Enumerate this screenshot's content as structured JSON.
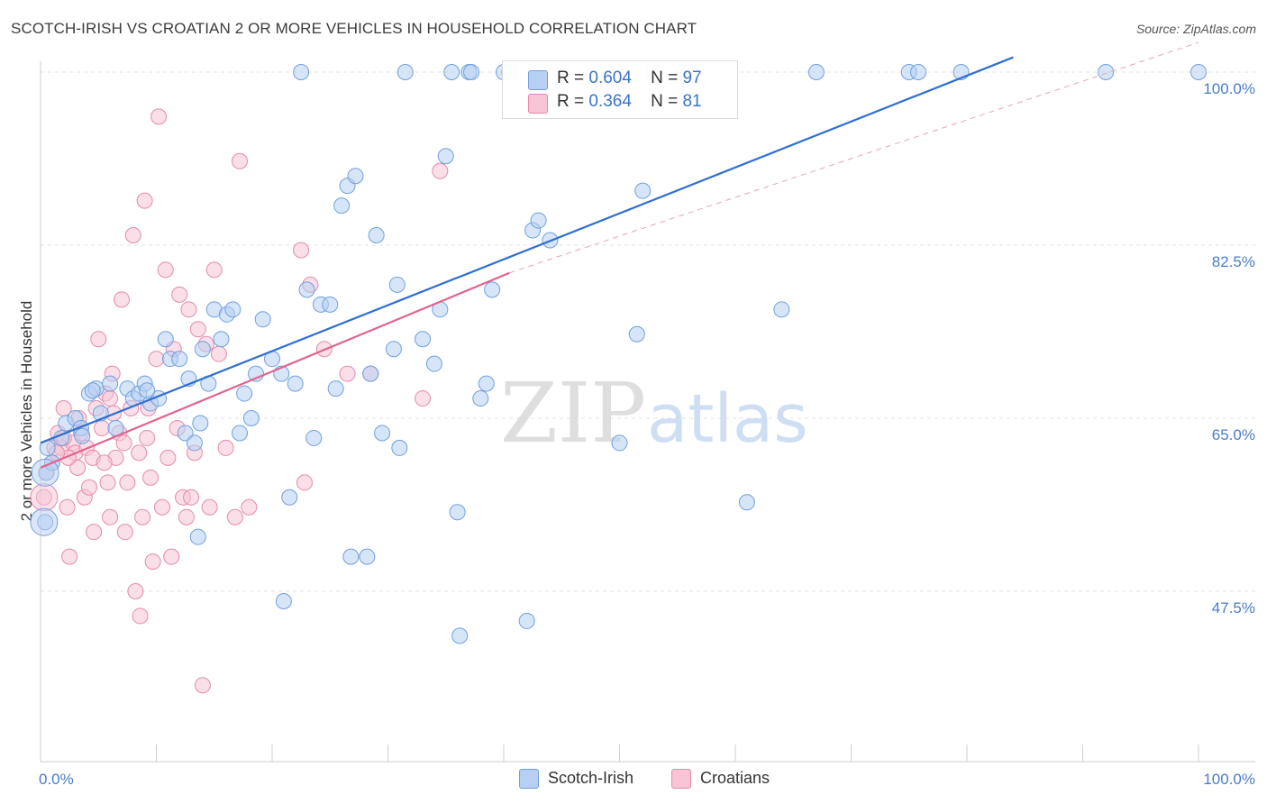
{
  "chart_data": {
    "type": "scatter",
    "title": "SCOTCH-IRISH VS CROATIAN 2 OR MORE VEHICLES IN HOUSEHOLD CORRELATION CHART",
    "source": "Source: ZipAtlas.com",
    "xlabel": "",
    "ylabel": "2 or more Vehicles in Household",
    "xlim": [
      0,
      100
    ],
    "ylim": [
      31,
      103
    ],
    "x_tick_labels": [
      "0.0%",
      "100.0%"
    ],
    "y_ticks": [
      47.5,
      65.0,
      82.5,
      100.0
    ],
    "y_tick_labels": [
      "47.5%",
      "65.0%",
      "82.5%",
      "100.0%"
    ],
    "grid": true,
    "watermark": {
      "part1": "ZIP",
      "part2": "atlas"
    },
    "legend": {
      "placement": "top-center",
      "rows": [
        {
          "r_label": "R =",
          "r_value": "0.604",
          "n_label": "N =",
          "n_value": "97"
        },
        {
          "r_label": "R =",
          "r_value": "0.364",
          "n_label": "N =",
          "n_value": "81"
        }
      ]
    },
    "series": [
      {
        "name": "Scotch-Irish",
        "color": "#6fa0e0",
        "fill": "#b7cff2",
        "line_color": "#2f6fd0",
        "trend": {
          "x": [
            0,
            84
          ],
          "y": [
            62.5,
            101.5
          ]
        },
        "points": [
          [
            0.4,
            54.5
          ],
          [
            0.5,
            59.5
          ],
          [
            0.6,
            62.0
          ],
          [
            1.0,
            60.5
          ],
          [
            1.8,
            63.0
          ],
          [
            2.2,
            64.5
          ],
          [
            3.0,
            65.0
          ],
          [
            3.5,
            64.0
          ],
          [
            4.2,
            67.5
          ],
          [
            4.8,
            68.0
          ],
          [
            5.2,
            65.5
          ],
          [
            6.0,
            68.5
          ],
          [
            6.5,
            64.0
          ],
          [
            7.5,
            68.0
          ],
          [
            8.0,
            67.0
          ],
          [
            8.5,
            67.5
          ],
          [
            9.0,
            68.5
          ],
          [
            9.5,
            66.5
          ],
          [
            10.2,
            67.0
          ],
          [
            10.8,
            73.0
          ],
          [
            11.2,
            71.0
          ],
          [
            12.0,
            71.0
          ],
          [
            12.5,
            63.5
          ],
          [
            12.8,
            69.0
          ],
          [
            13.3,
            62.5
          ],
          [
            14.0,
            72.0
          ],
          [
            14.5,
            68.5
          ],
          [
            15.0,
            76.0
          ],
          [
            15.6,
            73.0
          ],
          [
            16.1,
            75.5
          ],
          [
            16.6,
            76.0
          ],
          [
            17.2,
            63.5
          ],
          [
            17.6,
            67.5
          ],
          [
            18.2,
            65.0
          ],
          [
            18.6,
            69.5
          ],
          [
            19.2,
            75.0
          ],
          [
            20.0,
            71.0
          ],
          [
            20.8,
            69.5
          ],
          [
            21.5,
            57.0
          ],
          [
            22.0,
            68.5
          ],
          [
            22.5,
            100.0
          ],
          [
            23.0,
            78.0
          ],
          [
            23.6,
            63.0
          ],
          [
            24.2,
            76.5
          ],
          [
            25.0,
            76.5
          ],
          [
            25.5,
            68.0
          ],
          [
            26.0,
            86.5
          ],
          [
            26.5,
            88.5
          ],
          [
            27.2,
            89.5
          ],
          [
            28.2,
            51.0
          ],
          [
            28.5,
            69.5
          ],
          [
            29.0,
            83.5
          ],
          [
            29.5,
            63.5
          ],
          [
            30.5,
            72.0
          ],
          [
            30.8,
            78.5
          ],
          [
            31.0,
            62.0
          ],
          [
            31.5,
            100.0
          ],
          [
            33.0,
            73.0
          ],
          [
            34.0,
            70.5
          ],
          [
            34.5,
            76.0
          ],
          [
            35.0,
            91.5
          ],
          [
            35.5,
            100.0
          ],
          [
            36.0,
            55.5
          ],
          [
            36.2,
            43.0
          ],
          [
            37.0,
            100.0
          ],
          [
            37.2,
            100.0
          ],
          [
            38.0,
            67.0
          ],
          [
            38.5,
            68.5
          ],
          [
            39.0,
            78.0
          ],
          [
            40.0,
            100.0
          ],
          [
            40.5,
            100.0
          ],
          [
            42.0,
            44.5
          ],
          [
            42.5,
            84.0
          ],
          [
            43.0,
            85.0
          ],
          [
            44.0,
            83.0
          ],
          [
            45.0,
            100.0
          ],
          [
            50.0,
            62.5
          ],
          [
            51.5,
            73.5
          ],
          [
            52.0,
            88.0
          ],
          [
            53.0,
            100.0
          ],
          [
            55.5,
            100.0
          ],
          [
            56.0,
            100.0
          ],
          [
            61.0,
            56.5
          ],
          [
            64.0,
            76.0
          ],
          [
            67.0,
            100.0
          ],
          [
            75.0,
            100.0
          ],
          [
            75.8,
            100.0
          ],
          [
            79.5,
            100.0
          ],
          [
            92.0,
            100.0
          ],
          [
            100.0,
            100.0
          ],
          [
            9.2,
            67.8
          ],
          [
            13.8,
            64.5
          ],
          [
            21.0,
            46.5
          ],
          [
            26.8,
            51.0
          ],
          [
            13.6,
            53.0
          ],
          [
            4.5,
            67.8
          ],
          [
            3.6,
            63.2
          ]
        ],
        "big_points": [
          [
            0.3,
            54.5
          ],
          [
            0.4,
            59.5
          ]
        ]
      },
      {
        "name": "Croatians",
        "color": "#e58aac",
        "fill": "#f6c4d5",
        "line_color": "#e0648f",
        "trend": {
          "x": [
            0,
            40.5
          ],
          "y": [
            60.0,
            79.7
          ]
        },
        "trend_ext": {
          "x": [
            40.5,
            100
          ],
          "y": [
            79.7,
            103
          ]
        },
        "points": [
          [
            0.3,
            57.0
          ],
          [
            0.5,
            59.5
          ],
          [
            1.0,
            60.5
          ],
          [
            1.2,
            62.0
          ],
          [
            1.5,
            63.5
          ],
          [
            1.8,
            62.0
          ],
          [
            2.0,
            66.0
          ],
          [
            2.3,
            56.0
          ],
          [
            2.5,
            51.0
          ],
          [
            2.8,
            62.5
          ],
          [
            3.0,
            61.5
          ],
          [
            3.2,
            60.0
          ],
          [
            3.5,
            63.5
          ],
          [
            3.8,
            57.0
          ],
          [
            4.0,
            62.0
          ],
          [
            4.2,
            58.0
          ],
          [
            4.5,
            61.0
          ],
          [
            4.8,
            66.0
          ],
          [
            5.0,
            73.0
          ],
          [
            5.3,
            64.0
          ],
          [
            5.6,
            67.5
          ],
          [
            5.8,
            58.5
          ],
          [
            6.0,
            55.0
          ],
          [
            6.2,
            69.5
          ],
          [
            6.5,
            61.0
          ],
          [
            6.8,
            63.5
          ],
          [
            7.0,
            77.0
          ],
          [
            7.3,
            53.5
          ],
          [
            7.5,
            58.5
          ],
          [
            7.8,
            66.0
          ],
          [
            8.0,
            83.5
          ],
          [
            8.2,
            47.5
          ],
          [
            8.5,
            61.5
          ],
          [
            8.8,
            55.0
          ],
          [
            9.0,
            87.0
          ],
          [
            9.2,
            63.0
          ],
          [
            9.5,
            59.0
          ],
          [
            9.7,
            50.5
          ],
          [
            10.0,
            71.0
          ],
          [
            10.2,
            95.5
          ],
          [
            10.5,
            56.0
          ],
          [
            10.8,
            80.0
          ],
          [
            11.0,
            61.0
          ],
          [
            11.3,
            51.0
          ],
          [
            11.5,
            72.0
          ],
          [
            11.8,
            64.0
          ],
          [
            12.0,
            77.5
          ],
          [
            12.3,
            57.0
          ],
          [
            12.6,
            55.0
          ],
          [
            12.8,
            76.0
          ],
          [
            13.0,
            57.0
          ],
          [
            13.3,
            61.5
          ],
          [
            13.6,
            74.0
          ],
          [
            14.0,
            38.0
          ],
          [
            14.3,
            72.5
          ],
          [
            14.6,
            56.0
          ],
          [
            15.0,
            80.0
          ],
          [
            15.4,
            71.5
          ],
          [
            16.0,
            62.0
          ],
          [
            16.8,
            55.0
          ],
          [
            17.2,
            91.0
          ],
          [
            18.0,
            56.0
          ],
          [
            22.5,
            82.0
          ],
          [
            22.8,
            58.5
          ],
          [
            23.3,
            78.5
          ],
          [
            24.5,
            72.0
          ],
          [
            26.5,
            69.5
          ],
          [
            28.5,
            69.5
          ],
          [
            33.0,
            67.0
          ],
          [
            34.5,
            90.0
          ],
          [
            8.6,
            45.0
          ],
          [
            7.2,
            62.5
          ],
          [
            6.3,
            65.5
          ],
          [
            9.3,
            66.0
          ],
          [
            5.5,
            60.5
          ],
          [
            2.0,
            63.0
          ],
          [
            2.4,
            61.0
          ],
          [
            1.4,
            61.5
          ],
          [
            3.3,
            65.0
          ],
          [
            4.6,
            53.5
          ],
          [
            6.0,
            67.0
          ]
        ],
        "big_points": [
          [
            0.3,
            57.0
          ]
        ]
      }
    ]
  }
}
